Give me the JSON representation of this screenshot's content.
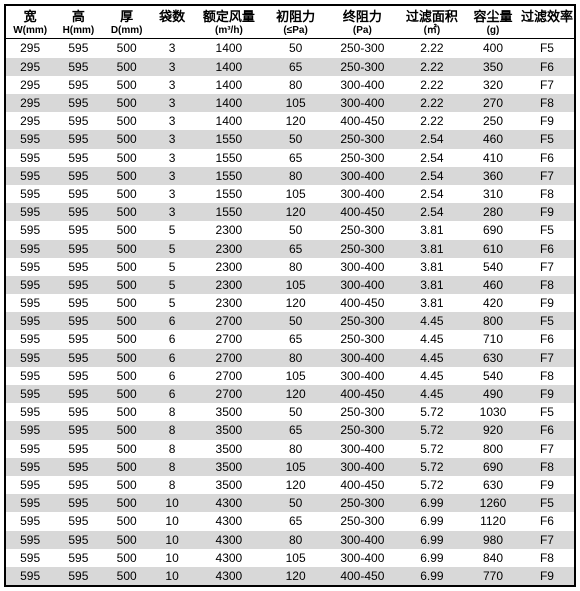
{
  "table": {
    "col_widths_pct": [
      8.5,
      8.5,
      8.5,
      7.5,
      12.5,
      11,
      12.5,
      12,
      9.5,
      9.5
    ],
    "font_sizes": {
      "header_main": 13,
      "header_sub": 10,
      "cell": 12
    },
    "colors": {
      "border": "#000000",
      "header_bg": "#ffffff",
      "row_even_bg": "#ffffff",
      "row_odd_bg": "#d8d8d8",
      "text": "#000000"
    },
    "columns": [
      {
        "main": "宽",
        "sub": "W(mm)"
      },
      {
        "main": "高",
        "sub": "H(mm)"
      },
      {
        "main": "厚",
        "sub": "D(mm)"
      },
      {
        "main": "袋数",
        "sub": ""
      },
      {
        "main": "额定风量",
        "sub": "(m³/h)"
      },
      {
        "main": "初阻力",
        "sub": "(≤Pa)"
      },
      {
        "main": "终阻力",
        "sub": "(Pa)"
      },
      {
        "main": "过滤面积",
        "sub": "(㎡)"
      },
      {
        "main": "容尘量",
        "sub": "(g)"
      },
      {
        "main": "过滤效率",
        "sub": ""
      }
    ],
    "rows": [
      [
        "295",
        "595",
        "500",
        "3",
        "1400",
        "50",
        "250-300",
        "2.22",
        "400",
        "F5"
      ],
      [
        "295",
        "595",
        "500",
        "3",
        "1400",
        "65",
        "250-300",
        "2.22",
        "350",
        "F6"
      ],
      [
        "295",
        "595",
        "500",
        "3",
        "1400",
        "80",
        "300-400",
        "2.22",
        "320",
        "F7"
      ],
      [
        "295",
        "595",
        "500",
        "3",
        "1400",
        "105",
        "300-400",
        "2.22",
        "270",
        "F8"
      ],
      [
        "295",
        "595",
        "500",
        "3",
        "1400",
        "120",
        "400-450",
        "2.22",
        "250",
        "F9"
      ],
      [
        "595",
        "595",
        "500",
        "3",
        "1550",
        "50",
        "250-300",
        "2.54",
        "460",
        "F5"
      ],
      [
        "595",
        "595",
        "500",
        "3",
        "1550",
        "65",
        "250-300",
        "2.54",
        "410",
        "F6"
      ],
      [
        "595",
        "595",
        "500",
        "3",
        "1550",
        "80",
        "300-400",
        "2.54",
        "360",
        "F7"
      ],
      [
        "595",
        "595",
        "500",
        "3",
        "1550",
        "105",
        "300-400",
        "2.54",
        "310",
        "F8"
      ],
      [
        "595",
        "595",
        "500",
        "3",
        "1550",
        "120",
        "400-450",
        "2.54",
        "280",
        "F9"
      ],
      [
        "595",
        "595",
        "500",
        "5",
        "2300",
        "50",
        "250-300",
        "3.81",
        "690",
        "F5"
      ],
      [
        "595",
        "595",
        "500",
        "5",
        "2300",
        "65",
        "250-300",
        "3.81",
        "610",
        "F6"
      ],
      [
        "595",
        "595",
        "500",
        "5",
        "2300",
        "80",
        "300-400",
        "3.81",
        "540",
        "F7"
      ],
      [
        "595",
        "595",
        "500",
        "5",
        "2300",
        "105",
        "300-400",
        "3.81",
        "460",
        "F8"
      ],
      [
        "595",
        "595",
        "500",
        "5",
        "2300",
        "120",
        "400-450",
        "3.81",
        "420",
        "F9"
      ],
      [
        "595",
        "595",
        "500",
        "6",
        "2700",
        "50",
        "250-300",
        "4.45",
        "800",
        "F5"
      ],
      [
        "595",
        "595",
        "500",
        "6",
        "2700",
        "65",
        "250-300",
        "4.45",
        "710",
        "F6"
      ],
      [
        "595",
        "595",
        "500",
        "6",
        "2700",
        "80",
        "300-400",
        "4.45",
        "630",
        "F7"
      ],
      [
        "595",
        "595",
        "500",
        "6",
        "2700",
        "105",
        "300-400",
        "4.45",
        "540",
        "F8"
      ],
      [
        "595",
        "595",
        "500",
        "6",
        "2700",
        "120",
        "400-450",
        "4.45",
        "490",
        "F9"
      ],
      [
        "595",
        "595",
        "500",
        "8",
        "3500",
        "50",
        "250-300",
        "5.72",
        "1030",
        "F5"
      ],
      [
        "595",
        "595",
        "500",
        "8",
        "3500",
        "65",
        "250-300",
        "5.72",
        "920",
        "F6"
      ],
      [
        "595",
        "595",
        "500",
        "8",
        "3500",
        "80",
        "300-400",
        "5.72",
        "800",
        "F7"
      ],
      [
        "595",
        "595",
        "500",
        "8",
        "3500",
        "105",
        "300-400",
        "5.72",
        "690",
        "F8"
      ],
      [
        "595",
        "595",
        "500",
        "8",
        "3500",
        "120",
        "400-450",
        "5.72",
        "630",
        "F9"
      ],
      [
        "595",
        "595",
        "500",
        "10",
        "4300",
        "50",
        "250-300",
        "6.99",
        "1260",
        "F5"
      ],
      [
        "595",
        "595",
        "500",
        "10",
        "4300",
        "65",
        "250-300",
        "6.99",
        "1120",
        "F6"
      ],
      [
        "595",
        "595",
        "500",
        "10",
        "4300",
        "80",
        "300-400",
        "6.99",
        "980",
        "F7"
      ],
      [
        "595",
        "595",
        "500",
        "10",
        "4300",
        "105",
        "300-400",
        "6.99",
        "840",
        "F8"
      ],
      [
        "595",
        "595",
        "500",
        "10",
        "4300",
        "120",
        "400-450",
        "6.99",
        "770",
        "F9"
      ]
    ]
  }
}
